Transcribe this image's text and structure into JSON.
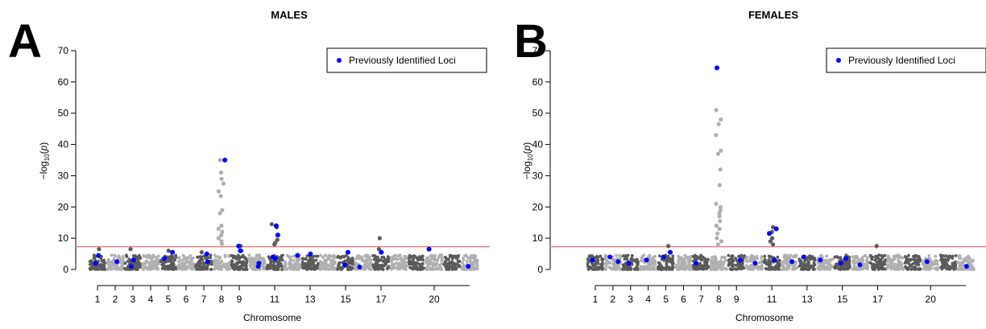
{
  "chart_data": [
    {
      "type": "scatter",
      "panel_letter": "A",
      "title": "MALES",
      "xlabel": "Chromosome",
      "ylabel": "-log10(p)",
      "ylim": [
        0,
        70
      ],
      "yticks": [
        "0",
        "10",
        "20",
        "30",
        "40",
        "50",
        "60",
        "70"
      ],
      "xtick_labels": [
        "1",
        "2",
        "3",
        "4",
        "5",
        "6",
        "7",
        "8",
        "9",
        "11",
        "13",
        "15",
        "17",
        "20"
      ],
      "xtick_chromosomes": [
        1,
        2,
        3,
        4,
        5,
        6,
        7,
        8,
        9,
        11,
        13,
        15,
        17,
        20
      ],
      "chromosome_count": 22,
      "significance_threshold": 7.3,
      "legend": {
        "label": "Previously Identified Loci",
        "position": "top-right"
      },
      "series": [
        {
          "name": "",
          "role": "strong signals",
          "points": [
            {
              "chr": 8,
              "y": 35.0
            },
            {
              "chr": 8,
              "y": 31.0
            },
            {
              "chr": 8,
              "y": 29.0
            },
            {
              "chr": 8,
              "y": 27.5
            },
            {
              "chr": 8,
              "y": 25.0
            },
            {
              "chr": 8,
              "y": 23.5
            },
            {
              "chr": 8,
              "y": 19.0
            },
            {
              "chr": 8,
              "y": 18.0
            },
            {
              "chr": 8,
              "y": 14.0
            },
            {
              "chr": 8,
              "y": 13.0
            },
            {
              "chr": 8,
              "y": 12.0
            },
            {
              "chr": 8,
              "y": 11.0
            },
            {
              "chr": 8,
              "y": 10.0
            },
            {
              "chr": 8,
              "y": 9.0
            },
            {
              "chr": 8,
              "y": 8.2
            },
            {
              "chr": 9,
              "y": 7.5
            },
            {
              "chr": 9,
              "y": 6.0
            },
            {
              "chr": 11,
              "y": 14.5
            },
            {
              "chr": 11,
              "y": 13.5
            },
            {
              "chr": 11,
              "y": 11.0
            },
            {
              "chr": 11,
              "y": 9.5
            },
            {
              "chr": 11,
              "y": 8.5
            },
            {
              "chr": 11,
              "y": 8.0
            },
            {
              "chr": 17,
              "y": 10.0
            },
            {
              "chr": 17,
              "y": 6.5
            },
            {
              "chr": 1,
              "y": 6.5
            },
            {
              "chr": 3,
              "y": 6.5
            },
            {
              "chr": 5,
              "y": 6.0
            },
            {
              "chr": 7,
              "y": 5.5
            }
          ]
        },
        {
          "name": "Previously Identified Loci",
          "color": "#0000ff",
          "points": [
            {
              "chr": 1,
              "y": 2.0
            },
            {
              "chr": 1,
              "y": 4.5
            },
            {
              "chr": 2,
              "y": 2.5
            },
            {
              "chr": 3,
              "y": 3.0
            },
            {
              "chr": 3,
              "y": 1.0
            },
            {
              "chr": 5,
              "y": 5.5
            },
            {
              "chr": 5,
              "y": 3.5
            },
            {
              "chr": 7,
              "y": 5.0
            },
            {
              "chr": 7,
              "y": 2.5
            },
            {
              "chr": 8,
              "y": 35.0
            },
            {
              "chr": 9,
              "y": 7.5
            },
            {
              "chr": 9,
              "y": 6.0
            },
            {
              "chr": 10,
              "y": 2.0
            },
            {
              "chr": 10,
              "y": 1.0
            },
            {
              "chr": 11,
              "y": 14.0
            },
            {
              "chr": 11,
              "y": 11.0
            },
            {
              "chr": 11,
              "y": 4.0
            },
            {
              "chr": 11,
              "y": 3.5
            },
            {
              "chr": 12,
              "y": 4.5
            },
            {
              "chr": 13,
              "y": 5.0
            },
            {
              "chr": 15,
              "y": 5.5
            },
            {
              "chr": 15,
              "y": 1.5
            },
            {
              "chr": 16,
              "y": 0.8
            },
            {
              "chr": 17,
              "y": 5.5
            },
            {
              "chr": 20,
              "y": 6.5
            },
            {
              "chr": 22,
              "y": 1.0
            }
          ]
        }
      ]
    },
    {
      "type": "scatter",
      "panel_letter": "B",
      "title": "FEMALES",
      "xlabel": "Chromosome",
      "ylabel": "-log10(p)",
      "ylim": [
        0,
        70
      ],
      "yticks": [
        "0",
        "10",
        "20",
        "30",
        "40",
        "50",
        "60",
        "70"
      ],
      "xtick_labels": [
        "1",
        "2",
        "3",
        "4",
        "5",
        "6",
        "7",
        "8",
        "9",
        "11",
        "13",
        "15",
        "17",
        "20"
      ],
      "xtick_chromosomes": [
        1,
        2,
        3,
        4,
        5,
        6,
        7,
        8,
        9,
        11,
        13,
        15,
        17,
        20
      ],
      "chromosome_count": 22,
      "significance_threshold": 7.3,
      "legend": {
        "label": "Previously Identified Loci",
        "position": "top-right"
      },
      "series": [
        {
          "name": "",
          "role": "strong signals",
          "points": [
            {
              "chr": 8,
              "y": 64.5
            },
            {
              "chr": 8,
              "y": 51.0
            },
            {
              "chr": 8,
              "y": 48.0
            },
            {
              "chr": 8,
              "y": 46.5
            },
            {
              "chr": 8,
              "y": 43.0
            },
            {
              "chr": 8,
              "y": 38.0
            },
            {
              "chr": 8,
              "y": 37.0
            },
            {
              "chr": 8,
              "y": 32.0
            },
            {
              "chr": 8,
              "y": 27.0
            },
            {
              "chr": 8,
              "y": 21.0
            },
            {
              "chr": 8,
              "y": 20.0
            },
            {
              "chr": 8,
              "y": 19.0
            },
            {
              "chr": 8,
              "y": 18.0
            },
            {
              "chr": 8,
              "y": 17.0
            },
            {
              "chr": 8,
              "y": 15.5
            },
            {
              "chr": 8,
              "y": 14.0
            },
            {
              "chr": 8,
              "y": 13.0
            },
            {
              "chr": 8,
              "y": 11.5
            },
            {
              "chr": 8,
              "y": 10.0
            },
            {
              "chr": 8,
              "y": 9.0
            },
            {
              "chr": 8,
              "y": 8.0
            },
            {
              "chr": 11,
              "y": 13.5
            },
            {
              "chr": 11,
              "y": 12.0
            },
            {
              "chr": 11,
              "y": 10.0
            },
            {
              "chr": 11,
              "y": 9.0
            },
            {
              "chr": 11,
              "y": 8.0
            },
            {
              "chr": 5,
              "y": 7.5
            },
            {
              "chr": 17,
              "y": 7.5
            }
          ]
        },
        {
          "name": "Previously Identified Loci",
          "color": "#0000ff",
          "points": [
            {
              "chr": 8,
              "y": 64.5
            },
            {
              "chr": 1,
              "y": 3.0
            },
            {
              "chr": 2,
              "y": 2.5
            },
            {
              "chr": 2,
              "y": 4.0
            },
            {
              "chr": 3,
              "y": 2.0
            },
            {
              "chr": 4,
              "y": 3.0
            },
            {
              "chr": 5,
              "y": 5.5
            },
            {
              "chr": 5,
              "y": 4.0
            },
            {
              "chr": 7,
              "y": 2.0
            },
            {
              "chr": 9,
              "y": 3.0
            },
            {
              "chr": 10,
              "y": 2.0
            },
            {
              "chr": 11,
              "y": 13.0
            },
            {
              "chr": 11,
              "y": 11.5
            },
            {
              "chr": 11,
              "y": 3.0
            },
            {
              "chr": 12,
              "y": 2.5
            },
            {
              "chr": 13,
              "y": 4.0
            },
            {
              "chr": 14,
              "y": 3.0
            },
            {
              "chr": 15,
              "y": 3.5
            },
            {
              "chr": 15,
              "y": 2.0
            },
            {
              "chr": 16,
              "y": 1.5
            },
            {
              "chr": 20,
              "y": 2.5
            },
            {
              "chr": 22,
              "y": 1.0
            }
          ]
        }
      ]
    }
  ]
}
